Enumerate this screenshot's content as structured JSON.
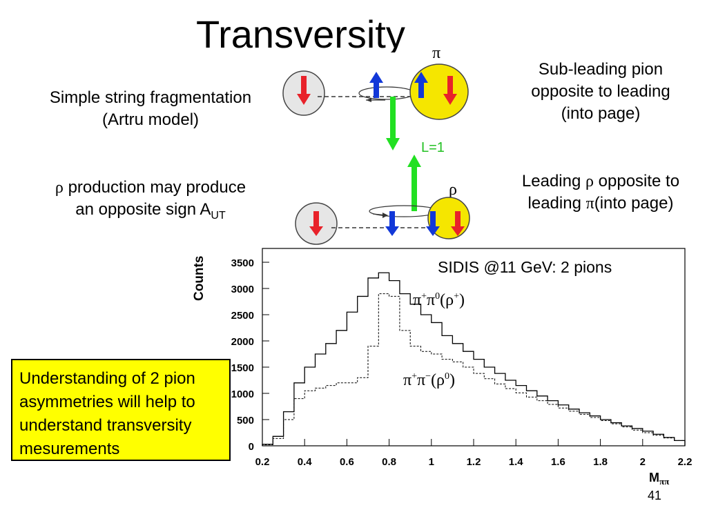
{
  "slide": {
    "title": "Transversity",
    "page_number": "41",
    "fragmentation_text": [
      "Simple string fragmentation",
      "(Artru model)"
    ],
    "rho_text": {
      "line1_symbol": "ρ",
      "line1": " production may produce",
      "line2": "an opposite sign A",
      "line2_sub": "UT"
    },
    "subleading_text": [
      "Sub-leading pion",
      "opposite to leading",
      "(into page)"
    ],
    "leading_text": {
      "line1a": "Leading ",
      "line1_symbol": "ρ",
      "line1b": " opposite to",
      "line2a": "leading ",
      "line2_symbol": "π",
      "line2b": "(into page)"
    },
    "callout_text": "Understanding of 2 pion asymmetries will help to understand transversity mesurements"
  },
  "diagram": {
    "top_label": "π",
    "l_label": "L=1",
    "rho_label": "ρ",
    "colors": {
      "red": "#e8222a",
      "blue": "#1238d8",
      "green": "#22e022",
      "yellow": "#f5e600",
      "gray": "#e6e6e6"
    }
  },
  "chart_data": {
    "type": "histogram",
    "ylabel": "Counts",
    "xlabel": "M",
    "xlabel_sub": "ππ",
    "xlim": [
      0.2,
      2.2
    ],
    "ylim": [
      0,
      3500
    ],
    "xticks": [
      "0.2",
      "0.4",
      "0.6",
      "0.8",
      "1",
      "1.2",
      "1.4",
      "1.6",
      "1.8",
      "2",
      "2.2"
    ],
    "yticks": [
      "0",
      "500",
      "1000",
      "1500",
      "2000",
      "2500",
      "3000",
      "3500"
    ],
    "annotation": "SIDIS @11 GeV: 2 pions",
    "bin_edges": [
      0.2,
      0.25,
      0.3,
      0.35,
      0.4,
      0.45,
      0.5,
      0.55,
      0.6,
      0.65,
      0.7,
      0.75,
      0.8,
      0.85,
      0.9,
      0.95,
      1.0,
      1.05,
      1.1,
      1.15,
      1.2,
      1.25,
      1.3,
      1.35,
      1.4,
      1.45,
      1.5,
      1.55,
      1.6,
      1.65,
      1.7,
      1.75,
      1.8,
      1.85,
      1.9,
      1.95,
      2.0,
      2.05,
      2.1,
      2.15,
      2.2
    ],
    "series": [
      {
        "name": "π+π0(ρ+)",
        "style": "solid",
        "values": [
          30,
          180,
          650,
          1200,
          1500,
          1750,
          1950,
          2200,
          2550,
          2850,
          3200,
          3300,
          3150,
          2900,
          2700,
          2500,
          2350,
          2100,
          1950,
          1800,
          1650,
          1500,
          1380,
          1250,
          1150,
          1050,
          950,
          860,
          780,
          700,
          630,
          570,
          500,
          440,
          380,
          330,
          280,
          220,
          160,
          100
        ]
      },
      {
        "name": "π+π−(ρ0)",
        "style": "dashed",
        "values": [
          20,
          140,
          500,
          900,
          1050,
          1100,
          1150,
          1200,
          1200,
          1300,
          1900,
          2900,
          2850,
          2200,
          1900,
          1800,
          1750,
          1650,
          1600,
          1500,
          1380,
          1280,
          1180,
          1090,
          1010,
          930,
          860,
          790,
          720,
          660,
          600,
          540,
          480,
          420,
          360,
          300,
          250,
          200,
          150,
          100
        ]
      }
    ],
    "series_labels": [
      {
        "base1": "π",
        "sup1": "+",
        "base2": "π",
        "sup2": "0",
        "base3": "(ρ",
        "sup3": "+",
        "base4": ")"
      },
      {
        "base1": "π",
        "sup1": "+",
        "base2": "π",
        "sup2": "−",
        "base3": "(ρ",
        "sup3": "0",
        "base4": ")"
      }
    ]
  }
}
